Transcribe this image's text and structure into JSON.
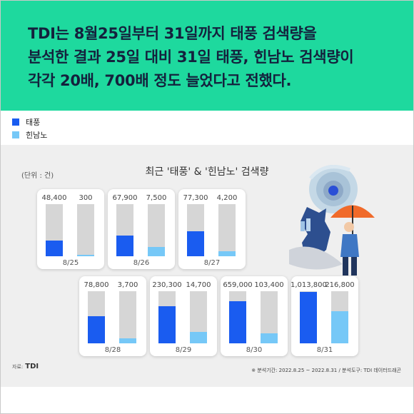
{
  "headline": [
    "TDI는 8월25일부터 31일까지 태풍 검색량을",
    "분석한 결과 25일 대비 31일 태풍, 힌남노 검색량이",
    "각각 20배, 700배 정도 늘었다고 전했다."
  ],
  "legend": [
    {
      "label": "태풍",
      "color": "#1a5cf0"
    },
    {
      "label": "힌남노",
      "color": "#76c8f7"
    }
  ],
  "colors": {
    "headline_bg": "#1ed99e",
    "track": "#d6d6d6"
  },
  "chart_data": {
    "type": "bar",
    "title": "최근 '태풍' & '힌남노' 검색량",
    "unit_label": "(단위 : 건)",
    "categories": [
      "8/25",
      "8/26",
      "8/27",
      "8/28",
      "8/29",
      "8/30",
      "8/31"
    ],
    "series": [
      {
        "name": "태풍",
        "values": [
          48400,
          67900,
          77300,
          78800,
          230300,
          659000,
          1013800
        ],
        "labels": [
          "48,400",
          "67,900",
          "77,300",
          "78,800",
          "230,300",
          "659,000",
          "1,013,800"
        ]
      },
      {
        "name": "힌남노",
        "values": [
          300,
          7500,
          4200,
          3700,
          14700,
          103400,
          216800
        ],
        "labels": [
          "300",
          "7,500",
          "4,200",
          "3,700",
          "14,700",
          "103,400",
          "216,800"
        ]
      }
    ],
    "fill_fraction": {
      "태풍": [
        0.3,
        0.4,
        0.48,
        0.52,
        0.71,
        0.81,
        0.99
      ],
      "힌남노": [
        0.03,
        0.18,
        0.1,
        0.09,
        0.22,
        0.19,
        0.61
      ]
    }
  },
  "source_label": "자료:",
  "source_logo": "TDI",
  "note": "※ 분석기간: 2022.8.25 ~ 2022.8.31  / 분석도구: TDI 데이터드래곤"
}
